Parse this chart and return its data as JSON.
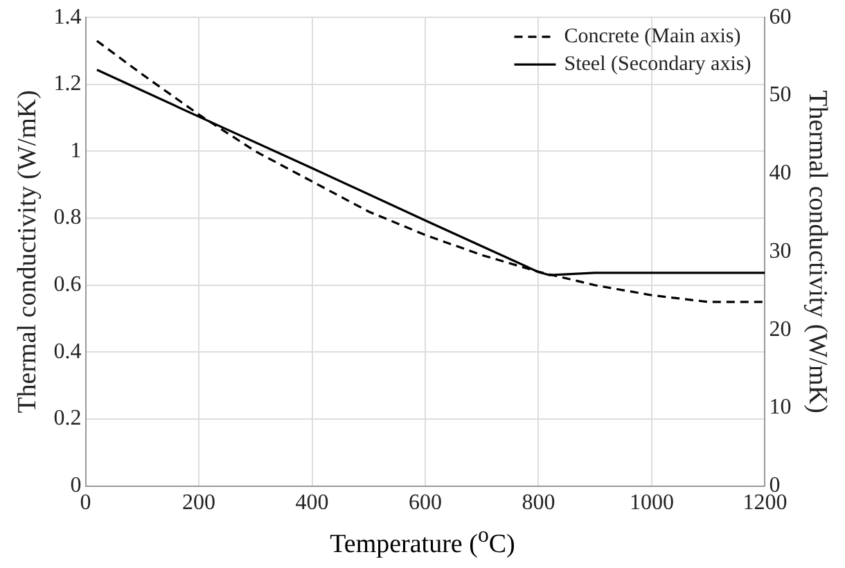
{
  "chart_data": {
    "type": "line",
    "xlabel": "Temperature ($^{o}$C)",
    "ylabel": "Thermal conductivity (W/mK)",
    "y2label": "Thermal conductivity (W/mK)",
    "xlim": [
      0,
      1200
    ],
    "xticks": [
      0,
      200,
      400,
      600,
      800,
      1000,
      1200
    ],
    "ylim": [
      0,
      1.4
    ],
    "yticks": [
      0,
      0.2,
      0.4,
      0.6,
      0.8,
      1,
      1.2,
      1.4
    ],
    "y2lim": [
      0,
      60
    ],
    "y2ticks": [
      0,
      10,
      20,
      30,
      40,
      50,
      60
    ],
    "grid": true,
    "legend": "top right",
    "marker": "none",
    "series": [
      {
        "name": "Concrete (Main axis)",
        "color": "#000000",
        "line_style": "dashed",
        "x": [
          20,
          100,
          200,
          300,
          400,
          500,
          600,
          700,
          800,
          900,
          1000,
          1100,
          1200
        ],
        "values": [
          1.33,
          1.23,
          1.11,
          1.0,
          0.91,
          0.82,
          0.75,
          0.69,
          0.64,
          0.6,
          0.57,
          0.55,
          0.55
        ]
      },
      {
        "name": "Steel (Secondary axis)",
        "color": "#000000",
        "line_style": "solid",
        "axis": "y2",
        "x": [
          20,
          200,
          400,
          600,
          700,
          800,
          820,
          900,
          1000,
          1200
        ],
        "values": [
          53.3,
          47.3,
          40.7,
          34.0,
          30.7,
          27.4,
          27.0,
          27.3,
          27.3,
          27.3
        ]
      }
    ]
  }
}
